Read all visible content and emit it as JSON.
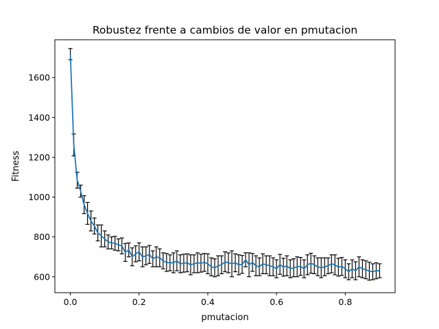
{
  "chart_data": {
    "type": "line",
    "title": "Robustez frente a cambios de valor en pmutacion",
    "xlabel": "pmutacion",
    "ylabel": "Fitness",
    "xlim": [
      -0.045,
      0.945
    ],
    "ylim": [
      520,
      1790
    ],
    "xticks": [
      0.0,
      0.2,
      0.4,
      0.6,
      0.8
    ],
    "xtick_labels": [
      "0.0",
      "0.2",
      "0.4",
      "0.6",
      "0.8"
    ],
    "yticks": [
      600,
      800,
      1000,
      1200,
      1400,
      1600
    ],
    "ytick_labels": [
      "600",
      "800",
      "1000",
      "1200",
      "1400",
      "1600"
    ],
    "grid": false,
    "line_color": "#1f77b4",
    "errorbar_color": "#000000",
    "series": [
      {
        "x": [
          0.0,
          0.01,
          0.02,
          0.03,
          0.04,
          0.05,
          0.06,
          0.07,
          0.08,
          0.09,
          0.1,
          0.11,
          0.12,
          0.13,
          0.14,
          0.15,
          0.16,
          0.17,
          0.18,
          0.19,
          0.2,
          0.21,
          0.22,
          0.23,
          0.24,
          0.25,
          0.26,
          0.27,
          0.28,
          0.29,
          0.3,
          0.31,
          0.32,
          0.33,
          0.34,
          0.35,
          0.36,
          0.37,
          0.38,
          0.39,
          0.4,
          0.41,
          0.42,
          0.43,
          0.44,
          0.45,
          0.46,
          0.47,
          0.48,
          0.49,
          0.5,
          0.51,
          0.52,
          0.53,
          0.54,
          0.55,
          0.56,
          0.57,
          0.58,
          0.59,
          0.6,
          0.61,
          0.62,
          0.63,
          0.64,
          0.65,
          0.66,
          0.67,
          0.68,
          0.69,
          0.7,
          0.71,
          0.72,
          0.73,
          0.74,
          0.75,
          0.76,
          0.77,
          0.78,
          0.79,
          0.8,
          0.81,
          0.82,
          0.83,
          0.84,
          0.85,
          0.86,
          0.87,
          0.88,
          0.89,
          0.9
        ],
        "y": [
          1718,
          1262,
          1085,
          1030,
          962,
          918,
          880,
          855,
          820,
          805,
          790,
          775,
          770,
          768,
          760,
          755,
          722,
          735,
          700,
          715,
          725,
          700,
          705,
          712,
          690,
          700,
          695,
          680,
          672,
          670,
          670,
          680,
          665,
          668,
          670,
          660,
          665,
          670,
          668,
          672,
          665,
          650,
          645,
          655,
          660,
          675,
          670,
          665,
          670,
          660,
          662,
          685,
          660,
          672,
          655,
          650,
          665,
          660,
          655,
          650,
          640,
          662,
          648,
          655,
          640,
          645,
          650,
          652,
          640,
          660,
          668,
          660,
          650,
          645,
          650,
          655,
          665,
          660,
          648,
          652,
          640,
          625,
          640,
          630,
          650,
          640,
          635,
          628,
          625,
          630,
          630
        ],
        "err": [
          28,
          55,
          40,
          30,
          45,
          55,
          50,
          40,
          40,
          55,
          40,
          35,
          30,
          35,
          30,
          40,
          45,
          35,
          45,
          40,
          45,
          50,
          45,
          45,
          40,
          50,
          45,
          40,
          45,
          40,
          50,
          50,
          45,
          45,
          45,
          50,
          45,
          50,
          45,
          45,
          50,
          45,
          45,
          50,
          45,
          50,
          50,
          65,
          45,
          50,
          45,
          35,
          60,
          45,
          50,
          45,
          50,
          45,
          50,
          45,
          45,
          50,
          45,
          50,
          45,
          45,
          50,
          45,
          45,
          50,
          50,
          45,
          45,
          50,
          45,
          40,
          45,
          50,
          45,
          45,
          45,
          40,
          45,
          45,
          50,
          45,
          45,
          45,
          40,
          40,
          35
        ]
      }
    ]
  }
}
